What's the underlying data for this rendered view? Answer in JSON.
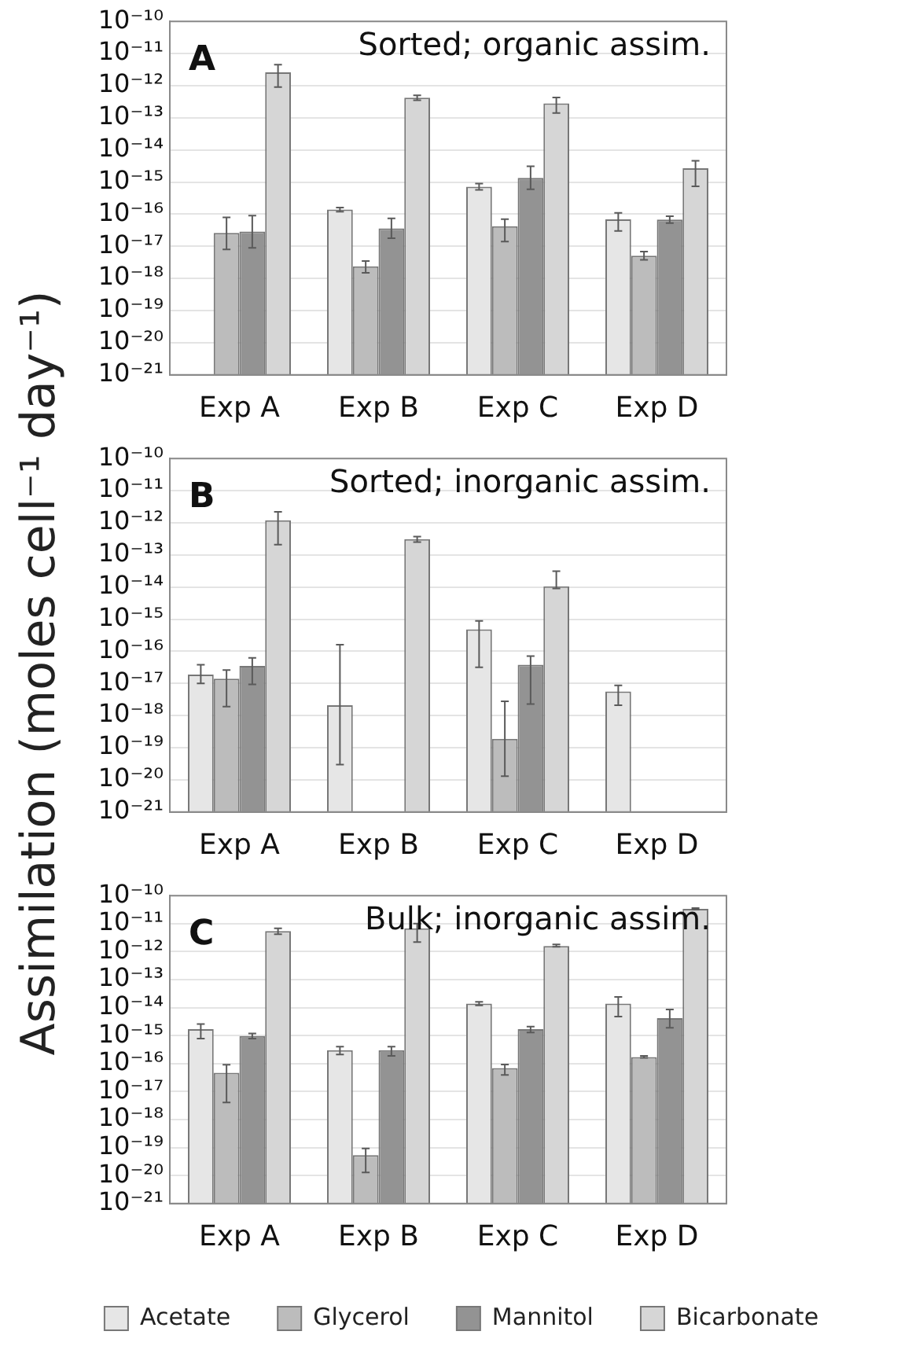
{
  "chart_data": [
    {
      "type": "bar",
      "title": "Sorted; organic assim.",
      "annotations": [
        "A"
      ],
      "categories": [
        "Exp A",
        "Exp B",
        "Exp C",
        "Exp D"
      ],
      "log": true,
      "grid": "y",
      "legend": false,
      "ylim": [
        1e-21,
        1e-10
      ],
      "yticks": [
        {
          "value": 1e-21,
          "label": "10⁻²¹"
        },
        {
          "value": 1e-20,
          "label": "10⁻²⁰"
        },
        {
          "value": 1e-19,
          "label": "10⁻¹⁹"
        },
        {
          "value": 1e-18,
          "label": "10⁻¹⁸"
        },
        {
          "value": 1e-17,
          "label": "10⁻¹⁷"
        },
        {
          "value": 1e-16,
          "label": "10⁻¹⁶"
        },
        {
          "value": 1e-15,
          "label": "10⁻¹⁵"
        },
        {
          "value": 1e-14,
          "label": "10⁻¹⁴"
        },
        {
          "value": 1e-13,
          "label": "10⁻¹³"
        },
        {
          "value": 1e-12,
          "label": "10⁻¹²"
        },
        {
          "value": 1e-11,
          "label": "10⁻¹¹"
        },
        {
          "value": 1e-10,
          "label": "10⁻¹⁰"
        }
      ],
      "series": [
        {
          "color": "#e6e6e6",
          "values": [
            null,
            1.4e-16,
            7.2e-16,
            6.9e-17
          ],
          "errors": [
            null,
            [
              1.2e-16,
              1.6e-16
            ],
            [
              5.7e-16,
              9e-16
            ],
            [
              3e-17,
              1.1e-16
            ]
          ]
        },
        {
          "color": "#bcbcbc",
          "values": [
            2.6e-17,
            2.4e-18,
            4.2e-17,
            5.1e-18
          ],
          "errors": [
            [
              8e-18,
              8e-17
            ],
            [
              1.5e-18,
              3.5e-18
            ],
            [
              1.4e-17,
              7e-17
            ],
            [
              3.8e-18,
              6.9e-18
            ]
          ]
        },
        {
          "color": "#939393",
          "values": [
            2.9e-17,
            3.6e-17,
            1.35e-15,
            6.8e-17
          ],
          "errors": [
            [
              9e-18,
              9e-17
            ],
            [
              1.8e-17,
              7.4e-17
            ],
            [
              6e-16,
              3.1e-15
            ],
            [
              5.3e-17,
              8.6e-17
            ]
          ]
        },
        {
          "color": "#d6d6d6",
          "values": [
            2.6e-12,
            4.2e-13,
            2.8e-13,
            2.7e-15
          ],
          "errors": [
            [
              9e-13,
              4.5e-12
            ],
            [
              3.5e-13,
              5e-13
            ],
            [
              1.4e-13,
              4.3e-13
            ],
            [
              7.4e-16,
              4.6e-15
            ]
          ]
        }
      ]
    },
    {
      "type": "bar",
      "title": "Sorted; inorganic assim.",
      "annotations": [
        "B"
      ],
      "ylabel": "Assimilation (moles cell⁻¹ day⁻¹)",
      "categories": [
        "Exp A",
        "Exp B",
        "Exp C",
        "Exp D"
      ],
      "log": true,
      "grid": "y",
      "legend": false,
      "ylim": [
        1e-21,
        1e-10
      ],
      "yticks": [
        {
          "value": 1e-21,
          "label": "10⁻²¹"
        },
        {
          "value": 1e-20,
          "label": "10⁻²⁰"
        },
        {
          "value": 1e-19,
          "label": "10⁻¹⁹"
        },
        {
          "value": 1e-18,
          "label": "10⁻¹⁸"
        },
        {
          "value": 1e-17,
          "label": "10⁻¹⁷"
        },
        {
          "value": 1e-16,
          "label": "10⁻¹⁶"
        },
        {
          "value": 1e-15,
          "label": "10⁻¹⁵"
        },
        {
          "value": 1e-14,
          "label": "10⁻¹⁴"
        },
        {
          "value": 1e-13,
          "label": "10⁻¹³"
        },
        {
          "value": 1e-12,
          "label": "10⁻¹²"
        },
        {
          "value": 1e-11,
          "label": "10⁻¹¹"
        },
        {
          "value": 1e-10,
          "label": "10⁻¹⁰"
        }
      ],
      "series": [
        {
          "color": "#e6e6e6",
          "values": [
            1.9e-17,
            2.1e-18,
            4.8e-16,
            5.6e-18
          ],
          "errors": [
            [
              1e-17,
              3.8e-17
            ],
            [
              3e-20,
              1.6e-16
            ],
            [
              3.2e-17,
              8.9e-16
            ],
            [
              2.1e-18,
              8.7e-18
            ]
          ]
        },
        {
          "color": "#bcbcbc",
          "values": [
            1.4e-17,
            null,
            1.9e-19,
            null
          ],
          "errors": [
            [
              1.9e-18,
              2.6e-17
            ],
            null,
            [
              1.3e-20,
              2.8e-18
            ],
            null
          ]
        },
        {
          "color": "#939393",
          "values": [
            3.5e-17,
            null,
            3.8e-17,
            null
          ],
          "errors": [
            [
              9.3e-18,
              6.3e-17
            ],
            null,
            [
              2.3e-18,
              7.1e-17
            ],
            null
          ]
        },
        {
          "color": "#d6d6d6",
          "values": [
            1.2e-12,
            3.1e-13,
            1.05e-14,
            null
          ],
          "errors": [
            [
              2.1e-13,
              2.2e-12
            ],
            [
              2.5e-13,
              3.7e-13
            ],
            [
              9e-15,
              3.1e-14
            ],
            null
          ]
        }
      ]
    },
    {
      "type": "bar",
      "title": "Bulk; inorganic assim.",
      "annotations": [
        "C"
      ],
      "categories": [
        "Exp A",
        "Exp B",
        "Exp C",
        "Exp D"
      ],
      "log": true,
      "grid": "y",
      "legend": "bottom",
      "ylim": [
        1e-21,
        1e-10
      ],
      "yticks": [
        {
          "value": 1e-21,
          "label": "10⁻²¹"
        },
        {
          "value": 1e-20,
          "label": "10⁻²⁰"
        },
        {
          "value": 1e-19,
          "label": "10⁻¹⁹"
        },
        {
          "value": 1e-18,
          "label": "10⁻¹⁸"
        },
        {
          "value": 1e-17,
          "label": "10⁻¹⁷"
        },
        {
          "value": 1e-16,
          "label": "10⁻¹⁶"
        },
        {
          "value": 1e-15,
          "label": "10⁻¹⁵"
        },
        {
          "value": 1e-14,
          "label": "10⁻¹⁴"
        },
        {
          "value": 1e-13,
          "label": "10⁻¹³"
        },
        {
          "value": 1e-12,
          "label": "10⁻¹²"
        },
        {
          "value": 1e-11,
          "label": "10⁻¹¹"
        },
        {
          "value": 1e-10,
          "label": "10⁻¹⁰"
        }
      ],
      "series": [
        {
          "name": "Acetate",
          "color": "#e6e6e6",
          "values": [
            1.7e-15,
            3e-16,
            1.4e-14,
            1.4e-14
          ],
          "errors": [
            [
              7.8e-16,
              2.6e-15
            ],
            [
              2.1e-16,
              4e-16
            ],
            [
              1.2e-14,
              1.6e-14
            ],
            [
              4.8e-15,
              2.4e-14
            ]
          ]
        },
        {
          "name": "Glycerol",
          "color": "#bcbcbc",
          "values": [
            4.7e-17,
            5.4e-20,
            6.9e-17,
            1.7e-16
          ],
          "errors": [
            [
              4.1e-18,
              9.1e-17
            ],
            [
              1.3e-20,
              9.3e-20
            ],
            [
              3.9e-17,
              9.3e-17
            ],
            [
              1.6e-16,
              1.9e-16
            ]
          ]
        },
        {
          "name": "Mannitol",
          "color": "#939393",
          "values": [
            9.6e-16,
            3e-16,
            1.7e-15,
            4.2e-15
          ],
          "errors": [
            [
              7.8e-16,
              1.2e-15
            ],
            [
              1.9e-16,
              4e-16
            ],
            [
              1.3e-15,
              2.1e-15
            ],
            [
              1.9e-15,
              8.6e-15
            ]
          ]
        },
        {
          "name": "Bicarbonate",
          "color": "#d6d6d6",
          "values": [
            5.4e-12,
            6.8e-12,
            1.6e-12,
            3.4e-11
          ],
          "errors": [
            [
              4.2e-12,
              6.8e-12
            ],
            [
              2.2e-12,
              1e-11
            ],
            [
              1.5e-12,
              1.8e-12
            ],
            [
              3.2e-11,
              3.6e-11
            ]
          ]
        }
      ]
    }
  ]
}
